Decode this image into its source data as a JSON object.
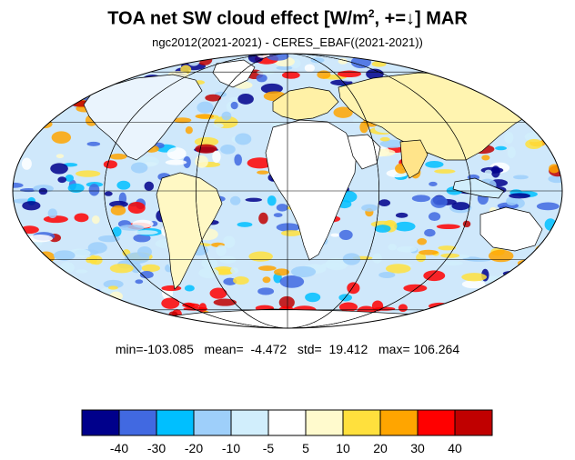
{
  "title": {
    "main": "TOA net SW cloud effect [W/m",
    "superscript": "2",
    "suffix": ", +=↓]  MAR"
  },
  "subtitle": "ngc2012(2021-2021) - CERES_EBAF((2021-2021))",
  "stats": {
    "text": "min=-103.085   mean=  -4.472   std=  19.412   max= 106.264",
    "min": -103.085,
    "mean": -4.472,
    "std": 19.412,
    "max": 106.264
  },
  "colorbar": {
    "tick_labels": [
      "-40",
      "-30",
      "-20",
      "-10",
      "-5",
      "5",
      "10",
      "20",
      "30",
      "40"
    ],
    "colors": [
      "#00008b",
      "#4169e1",
      "#00bfff",
      "#9ecffa",
      "#d1eefc",
      "#ffffff",
      "#fffacd",
      "#ffe03d",
      "#ffa500",
      "#ff0000",
      "#c00000"
    ]
  },
  "map": {
    "projection": "mollweide",
    "ocean_base_color": "#cfe8fb",
    "land_base_color": "#ffffff"
  }
}
